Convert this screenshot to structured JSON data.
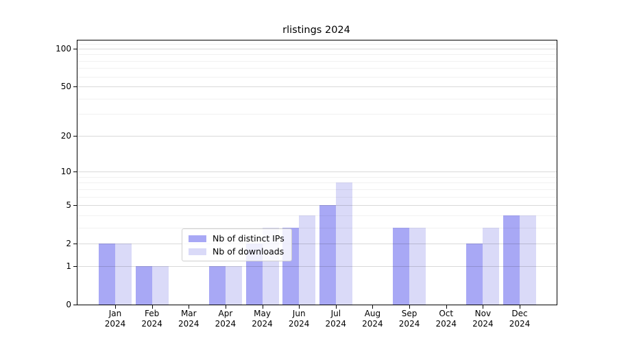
{
  "title": "rlistings 2024",
  "legend": {
    "items": [
      {
        "label": "Nb of distinct IPs",
        "color": "#a8a8f5"
      },
      {
        "label": "Nb of downloads",
        "color": "#dadaf8"
      }
    ]
  },
  "chart_data": {
    "type": "bar",
    "title": "rlistings 2024",
    "categories": [
      "Jan 2024",
      "Feb 2024",
      "Mar 2024",
      "Apr 2024",
      "May 2024",
      "Jun 2024",
      "Jul 2024",
      "Aug 2024",
      "Sep 2024",
      "Oct 2024",
      "Nov 2024",
      "Dec 2024"
    ],
    "series": [
      {
        "name": "Nb of distinct IPs",
        "color": "#a8a8f5",
        "values": [
          2,
          1,
          0,
          1,
          2,
          3,
          5,
          0,
          3,
          0,
          2,
          4
        ]
      },
      {
        "name": "Nb of downloads",
        "color": "#dadaf8",
        "values": [
          2,
          1,
          0,
          1,
          3,
          4,
          8,
          0,
          3,
          0,
          3,
          4
        ]
      }
    ],
    "xlabel": "",
    "ylabel": "",
    "yscale": "log1p",
    "y_major_ticks": [
      0,
      1,
      2,
      5,
      10,
      20,
      50,
      100
    ],
    "y_minor_gridlines": [
      3,
      4,
      6,
      7,
      8,
      9,
      30,
      40,
      60,
      70,
      80,
      90,
      109
    ],
    "ylim": [
      0,
      116
    ],
    "grid": true,
    "grid_above_bars": true,
    "legend_position": "lower center",
    "spine_color": "#000000",
    "major_grid_color": "#d9d9d9",
    "minor_grid_color": "#f1f1f1"
  }
}
